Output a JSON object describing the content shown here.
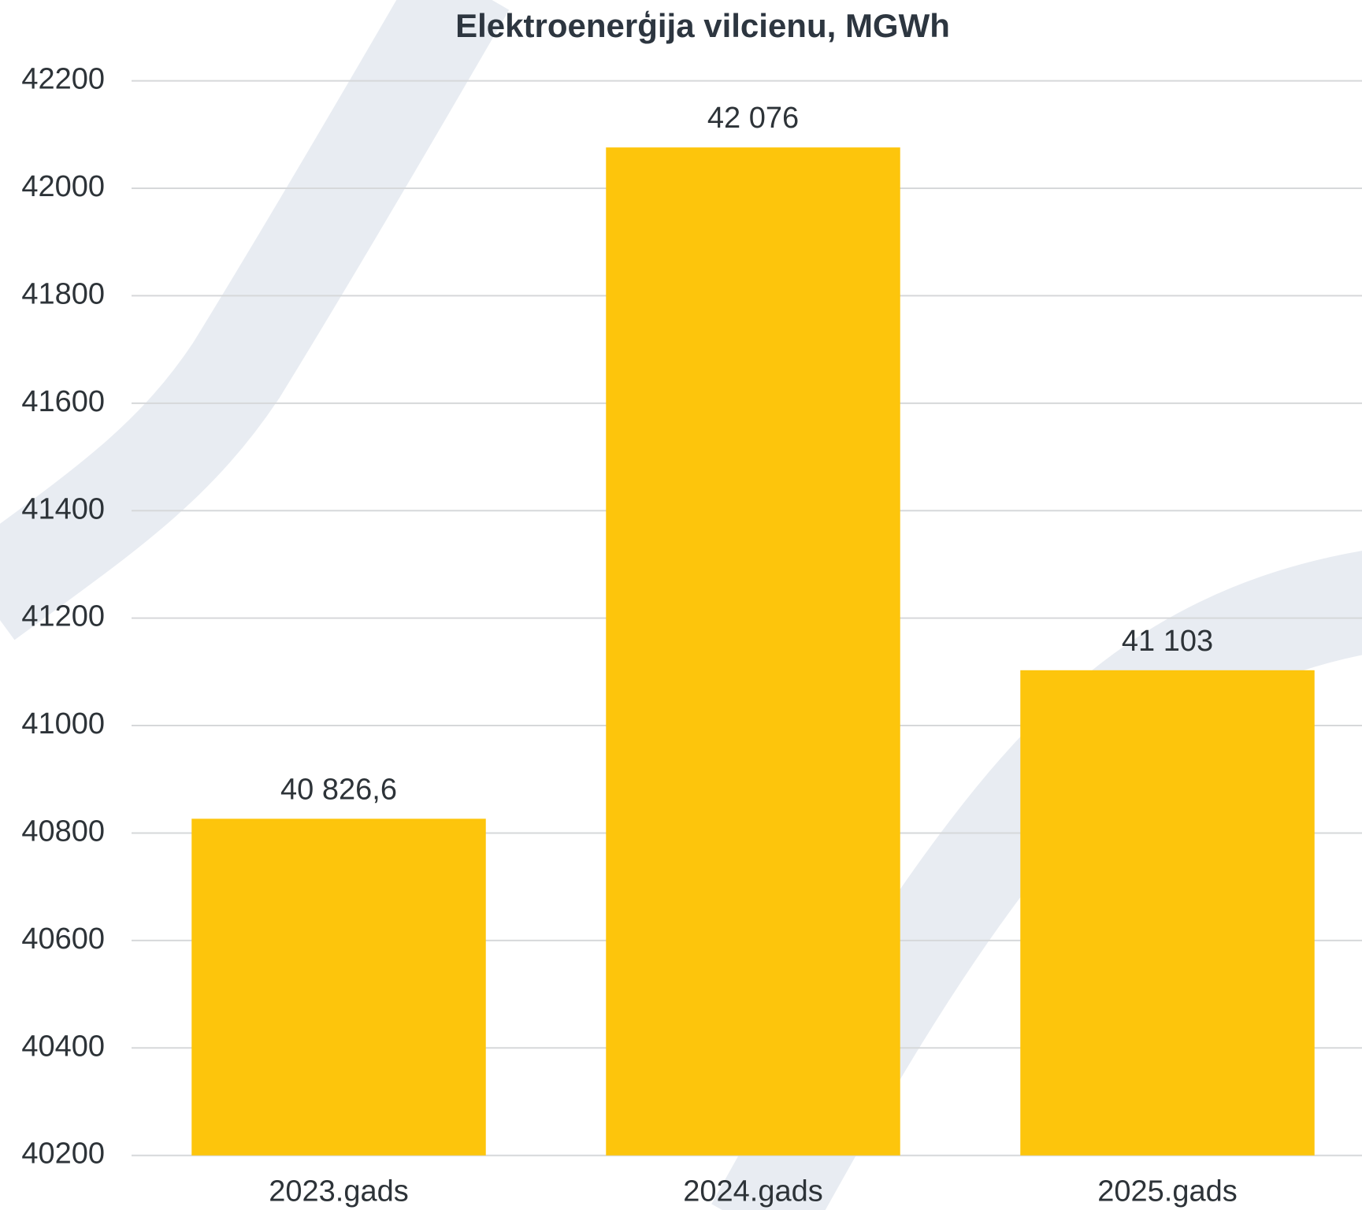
{
  "chart_data": {
    "type": "bar",
    "title": "Elektroenerģija vilcienu, MGWh",
    "categories": [
      "2023.gads",
      "2024.gads",
      "2025.gads"
    ],
    "values": [
      40826.6,
      42076,
      41103
    ],
    "value_labels": [
      "40 826,6",
      "42 076",
      "41 103"
    ],
    "color": "#fdc50c",
    "ylim": [
      40200,
      42200
    ],
    "yticks": [
      40200,
      40400,
      40600,
      40800,
      41000,
      41200,
      41400,
      41600,
      41800,
      42000,
      42200
    ],
    "grid": true
  }
}
